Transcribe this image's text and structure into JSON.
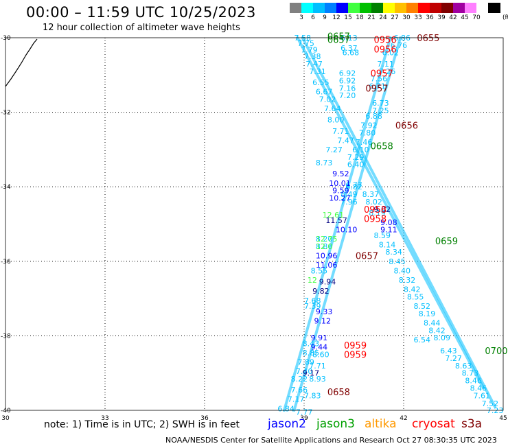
{
  "header": {
    "title": "00:00 – 11:59 UTC 10/25/2023",
    "subtitle": "12 hour collection of altimeter wave heights"
  },
  "color_scale": {
    "unit": "(ft)",
    "bins": [
      {
        "label": "",
        "color": "#808080"
      },
      {
        "label": "3",
        "color": "#00ffff"
      },
      {
        "label": "6",
        "color": "#00bfff"
      },
      {
        "label": "9",
        "color": "#0080ff"
      },
      {
        "label": "12",
        "color": "#0000ff"
      },
      {
        "label": "15",
        "color": "#40ff40"
      },
      {
        "label": "18",
        "color": "#00c000"
      },
      {
        "label": "21",
        "color": "#008000"
      },
      {
        "label": "24",
        "color": "#ffff00"
      },
      {
        "label": "27",
        "color": "#ffc000"
      },
      {
        "label": "30",
        "color": "#ff8000"
      },
      {
        "label": "33",
        "color": "#ff0000"
      },
      {
        "label": "36",
        "color": "#c00000"
      },
      {
        "label": "39",
        "color": "#800000"
      },
      {
        "label": "42",
        "color": "#a000a0"
      },
      {
        "label": "45",
        "color": "#ff80ff"
      },
      {
        "label": "70",
        "color": "#ffffff"
      },
      {
        "label": "",
        "color": "#000000"
      }
    ]
  },
  "map": {
    "lon_ticks": [
      "30",
      "33",
      "36",
      "39",
      "42",
      "45"
    ],
    "lat_ticks": [
      "-30",
      "-32",
      "-34",
      "-36",
      "-38",
      "-40"
    ]
  },
  "tracks": [
    {
      "id": "t1",
      "color": "#00bfff",
      "lon": [
        38.8,
        44.4
      ],
      "lat": [
        -30.0,
        -39.4
      ]
    },
    {
      "id": "t2",
      "color": "#00bfff",
      "lon": [
        38.95,
        44.75
      ],
      "lat": [
        -30.0,
        -39.9
      ]
    },
    {
      "id": "t3",
      "color": "#00bfff",
      "lon": [
        41.6,
        38.4
      ],
      "lat": [
        -30.0,
        -40.0
      ]
    },
    {
      "id": "t4",
      "color": "#00bfff",
      "lon": [
        41.9,
        38.7
      ],
      "lat": [
        -30.0,
        -40.0
      ]
    }
  ],
  "values": [
    {
      "t": "7.58",
      "lon": 38.7,
      "lat": -30.0,
      "c": "#00bfff"
    },
    {
      "t": "7.75",
      "lon": 38.8,
      "lat": -30.15,
      "c": "#00bfff"
    },
    {
      "t": "7.79",
      "lon": 38.9,
      "lat": -30.32,
      "c": "#00bfff"
    },
    {
      "t": "7.38",
      "lon": 39.0,
      "lat": -30.5,
      "c": "#00bfff"
    },
    {
      "t": "7.47",
      "lon": 39.05,
      "lat": -30.7,
      "c": "#00bfff"
    },
    {
      "t": "7.31",
      "lon": 39.15,
      "lat": -30.9,
      "c": "#00bfff"
    },
    {
      "t": "6.55",
      "lon": 39.25,
      "lat": -31.2,
      "c": "#00bfff"
    },
    {
      "t": "6.67",
      "lon": 39.35,
      "lat": -31.45,
      "c": "#00bfff"
    },
    {
      "t": "7.02",
      "lon": 39.45,
      "lat": -31.65,
      "c": "#00bfff"
    },
    {
      "t": "7.64",
      "lon": 39.6,
      "lat": -31.9,
      "c": "#00bfff"
    },
    {
      "t": "8.00",
      "lon": 39.7,
      "lat": -32.2,
      "c": "#00bfff"
    },
    {
      "t": "7.71",
      "lon": 39.85,
      "lat": -32.5,
      "c": "#00bfff"
    },
    {
      "t": "7.47",
      "lon": 40.0,
      "lat": -32.75,
      "c": "#00bfff"
    },
    {
      "t": "7.27",
      "lon": 39.65,
      "lat": -33.0,
      "c": "#00bfff"
    },
    {
      "t": "6.13",
      "lon": 40.1,
      "lat": -30.0,
      "c": "#00bfff"
    },
    {
      "t": "6.37",
      "lon": 40.1,
      "lat": -30.28,
      "c": "#00bfff"
    },
    {
      "t": "6.68",
      "lon": 40.15,
      "lat": -30.4,
      "c": "#00bfff"
    },
    {
      "t": "6.92",
      "lon": 40.05,
      "lat": -30.95,
      "c": "#00bfff"
    },
    {
      "t": "6.92",
      "lon": 40.05,
      "lat": -31.15,
      "c": "#00bfff"
    },
    {
      "t": "7.16",
      "lon": 40.05,
      "lat": -31.35,
      "c": "#00bfff"
    },
    {
      "t": "7.20",
      "lon": 40.05,
      "lat": -31.55,
      "c": "#00bfff"
    },
    {
      "t": "6.73",
      "lon": 41.05,
      "lat": -31.75,
      "c": "#00bfff"
    },
    {
      "t": "7.25",
      "lon": 41.05,
      "lat": -31.95,
      "c": "#00bfff"
    },
    {
      "t": "6.88",
      "lon": 40.85,
      "lat": -32.1,
      "c": "#00bfff"
    },
    {
      "t": "7.92",
      "lon": 40.7,
      "lat": -32.35,
      "c": "#00bfff"
    },
    {
      "t": "7.80",
      "lon": 40.65,
      "lat": -32.55,
      "c": "#00bfff"
    },
    {
      "t": "7.46",
      "lon": 40.55,
      "lat": -32.8,
      "c": "#00bfff"
    },
    {
      "t": "6.10",
      "lon": 40.45,
      "lat": -33.0,
      "c": "#00bfff"
    },
    {
      "t": "7.29",
      "lon": 40.3,
      "lat": -33.2,
      "c": "#00bfff"
    },
    {
      "t": "6.40",
      "lon": 40.3,
      "lat": -33.4,
      "c": "#00bfff"
    },
    {
      "t": "8.73",
      "lon": 39.35,
      "lat": -33.35,
      "c": "#00bfff"
    },
    {
      "t": "6.77",
      "lon": 40.25,
      "lat": -33.95,
      "c": "#00bfff"
    },
    {
      "t": "6.82",
      "lon": 40.25,
      "lat": -34.0,
      "c": "#00bfff"
    },
    {
      "t": "8.49",
      "lon": 40.1,
      "lat": -34.2,
      "c": "#00bfff"
    },
    {
      "t": "7.96",
      "lon": 40.1,
      "lat": -34.4,
      "c": "#00bfff"
    },
    {
      "t": "8.37",
      "lon": 40.75,
      "lat": -34.2,
      "c": "#00bfff"
    },
    {
      "t": "8.02",
      "lon": 40.85,
      "lat": -34.4,
      "c": "#00bfff"
    },
    {
      "t": "8.19",
      "lon": 40.95,
      "lat": -34.7,
      "c": "#00bfff"
    },
    {
      "t": "6.86",
      "lon": 41.7,
      "lat": -30.0,
      "c": "#00bfff"
    },
    {
      "t": "6.76",
      "lon": 41.6,
      "lat": -30.2,
      "c": "#00bfff"
    },
    {
      "t": "6.02",
      "lon": 41.35,
      "lat": -30.4,
      "c": "#00bfff"
    },
    {
      "t": "7.11",
      "lon": 41.2,
      "lat": -30.7,
      "c": "#00bfff"
    },
    {
      "t": "7.26",
      "lon": 41.25,
      "lat": -30.9,
      "c": "#00bfff"
    },
    {
      "t": "7.56",
      "lon": 41.0,
      "lat": -31.1,
      "c": "#00bfff"
    },
    {
      "t": "6.71",
      "lon": 40.95,
      "lat": -31.3,
      "c": "#00bfff"
    },
    {
      "t": "8.59",
      "lon": 41.1,
      "lat": -35.3,
      "c": "#00bfff"
    },
    {
      "t": "8.14",
      "lon": 41.25,
      "lat": -35.55,
      "c": "#00bfff"
    },
    {
      "t": "8.34",
      "lon": 41.45,
      "lat": -35.75,
      "c": "#00bfff"
    },
    {
      "t": "8.45",
      "lon": 41.55,
      "lat": -36.0,
      "c": "#00bfff"
    },
    {
      "t": "8.40",
      "lon": 41.7,
      "lat": -36.25,
      "c": "#00bfff"
    },
    {
      "t": "8.32",
      "lon": 41.85,
      "lat": -36.5,
      "c": "#00bfff"
    },
    {
      "t": "8.42",
      "lon": 42.0,
      "lat": -36.75,
      "c": "#00bfff"
    },
    {
      "t": "8.55",
      "lon": 42.1,
      "lat": -36.95,
      "c": "#00bfff"
    },
    {
      "t": "8.52",
      "lon": 42.3,
      "lat": -37.2,
      "c": "#00bfff"
    },
    {
      "t": "8.19",
      "lon": 42.45,
      "lat": -37.4,
      "c": "#00bfff"
    },
    {
      "t": "8.44",
      "lon": 42.6,
      "lat": -37.65,
      "c": "#00bfff"
    },
    {
      "t": "8.42",
      "lon": 42.75,
      "lat": -37.85,
      "c": "#00bfff"
    },
    {
      "t": "8.09",
      "lon": 42.9,
      "lat": -38.05,
      "c": "#00bfff"
    },
    {
      "t": "6.54",
      "lon": 42.3,
      "lat": -38.1,
      "c": "#00bfff"
    },
    {
      "t": "6.43",
      "lon": 43.1,
      "lat": -38.4,
      "c": "#00bfff"
    },
    {
      "t": "7.27",
      "lon": 43.25,
      "lat": -38.6,
      "c": "#00bfff"
    },
    {
      "t": "8.63",
      "lon": 43.55,
      "lat": -38.8,
      "c": "#00bfff"
    },
    {
      "t": "8.73",
      "lon": 43.75,
      "lat": -39.0,
      "c": "#00bfff"
    },
    {
      "t": "8.46",
      "lon": 43.85,
      "lat": -39.2,
      "c": "#00bfff"
    },
    {
      "t": "8.46",
      "lon": 44.0,
      "lat": -39.4,
      "c": "#00bfff"
    },
    {
      "t": "7.61",
      "lon": 44.1,
      "lat": -39.6,
      "c": "#00bfff"
    },
    {
      "t": "7.52",
      "lon": 44.35,
      "lat": -39.82,
      "c": "#00bfff"
    },
    {
      "t": "7.23",
      "lon": 44.5,
      "lat": -40.0,
      "c": "#00bfff"
    },
    {
      "t": "8.20",
      "lon": 39.35,
      "lat": -35.4,
      "c": "#00bfff"
    },
    {
      "t": "8.86",
      "lon": 39.35,
      "lat": -35.6,
      "c": "#00bfff"
    },
    {
      "t": "8.55",
      "lon": 39.2,
      "lat": -36.25,
      "c": "#00bfff"
    },
    {
      "t": "7.68",
      "lon": 39.0,
      "lat": -37.05,
      "c": "#00bfff"
    },
    {
      "t": "7.39",
      "lon": 39.0,
      "lat": -37.2,
      "c": "#00bfff"
    },
    {
      "t": "8.43",
      "lon": 38.95,
      "lat": -38.2,
      "c": "#00bfff"
    },
    {
      "t": "8.85",
      "lon": 38.95,
      "lat": -38.45,
      "c": "#00bfff"
    },
    {
      "t": "8.60",
      "lon": 39.25,
      "lat": -38.5,
      "c": "#00bfff"
    },
    {
      "t": "7.89",
      "lon": 38.8,
      "lat": -38.7,
      "c": "#00bfff"
    },
    {
      "t": "7.71",
      "lon": 39.15,
      "lat": -38.8,
      "c": "#00bfff"
    },
    {
      "t": "7.40",
      "lon": 38.75,
      "lat": -38.95,
      "c": "#00bfff"
    },
    {
      "t": "8.22",
      "lon": 38.6,
      "lat": -39.15,
      "c": "#00bfff"
    },
    {
      "t": "8.93",
      "lon": 39.15,
      "lat": -39.15,
      "c": "#00bfff"
    },
    {
      "t": "7.66",
      "lon": 38.6,
      "lat": -39.45,
      "c": "#00bfff"
    },
    {
      "t": "7.83",
      "lon": 39.0,
      "lat": -39.6,
      "c": "#00bfff"
    },
    {
      "t": "7.17",
      "lon": 38.5,
      "lat": -39.7,
      "c": "#00bfff"
    },
    {
      "t": "6.84",
      "lon": 38.2,
      "lat": -39.95,
      "c": "#00bfff"
    },
    {
      "t": "7.77",
      "lon": 38.75,
      "lat": -40.05,
      "c": "#00bfff"
    },
    {
      "t": "9.52",
      "lon": 39.85,
      "lat": -33.65,
      "c": "#0000ff"
    },
    {
      "t": "10.01",
      "lon": 39.75,
      "lat": -33.9,
      "c": "#0000ff"
    },
    {
      "t": "9.59",
      "lon": 39.85,
      "lat": -34.1,
      "c": "#0000ff"
    },
    {
      "t": "10.27",
      "lon": 39.75,
      "lat": -34.3,
      "c": "#0000ff"
    },
    {
      "t": "11.57",
      "lon": 39.65,
      "lat": -34.9,
      "c": "#000080"
    },
    {
      "t": "10.10",
      "lon": 39.95,
      "lat": -35.15,
      "c": "#0000ff"
    },
    {
      "t": "9.02",
      "lon": 41.1,
      "lat": -34.6,
      "c": "#000080"
    },
    {
      "t": "9.08",
      "lon": 41.3,
      "lat": -34.95,
      "c": "#0000ff"
    },
    {
      "t": "9.11",
      "lon": 41.3,
      "lat": -35.15,
      "c": "#0000ff"
    },
    {
      "t": "10.96",
      "lon": 39.35,
      "lat": -35.85,
      "c": "#0000ff"
    },
    {
      "t": "11.06",
      "lon": 39.35,
      "lat": -36.1,
      "c": "#0000ff"
    },
    {
      "t": "9.94",
      "lon": 39.45,
      "lat": -36.55,
      "c": "#000080"
    },
    {
      "t": "9.82",
      "lon": 39.25,
      "lat": -36.8,
      "c": "#000080"
    },
    {
      "t": "9.33",
      "lon": 39.35,
      "lat": -37.35,
      "c": "#0000ff"
    },
    {
      "t": "9.12",
      "lon": 39.3,
      "lat": -37.6,
      "c": "#0000ff"
    },
    {
      "t": "9.91",
      "lon": 39.2,
      "lat": -38.05,
      "c": "#0000ff"
    },
    {
      "t": "9.44",
      "lon": 39.2,
      "lat": -38.3,
      "c": "#0000ff"
    },
    {
      "t": "9.17",
      "lon": 38.95,
      "lat": -39.0,
      "c": "#000080"
    },
    {
      "t": "12.61",
      "lon": 39.55,
      "lat": -34.75,
      "c": "#40ff40"
    },
    {
      "t": "12.75",
      "lon": 39.35,
      "lat": -35.4,
      "c": "#40ff40"
    },
    {
      "t": "12.0",
      "lon": 39.35,
      "lat": -35.6,
      "c": "#40ff40"
    },
    {
      "t": "12",
      "lon": 39.1,
      "lat": -36.5,
      "c": "#40ff40"
    }
  ],
  "passes": [
    {
      "t": "0657",
      "lon": 39.7,
      "lat": -29.95,
      "c": "#008000"
    },
    {
      "t": "0657",
      "lon": 39.7,
      "lat": -30.05,
      "c": "#008000"
    },
    {
      "t": "0956",
      "lon": 41.1,
      "lat": -30.05,
      "c": "#ff0000"
    },
    {
      "t": "0956",
      "lon": 41.1,
      "lat": -30.3,
      "c": "#ff0000"
    },
    {
      "t": "0655",
      "lon": 42.4,
      "lat": -30.0,
      "c": "#800000"
    },
    {
      "t": "0957",
      "lon": 41.0,
      "lat": -30.95,
      "c": "#ff0000"
    },
    {
      "t": "0957",
      "lon": 40.85,
      "lat": -31.35,
      "c": "#800000"
    },
    {
      "t": "0656",
      "lon": 41.75,
      "lat": -32.35,
      "c": "#800000"
    },
    {
      "t": "0658",
      "lon": 41.0,
      "lat": -32.9,
      "c": "#008000"
    },
    {
      "t": "0958",
      "lon": 40.8,
      "lat": -34.6,
      "c": "#ff0000"
    },
    {
      "t": "0958",
      "lon": 40.8,
      "lat": -34.85,
      "c": "#ff0000"
    },
    {
      "t": "0659",
      "lon": 42.95,
      "lat": -35.45,
      "c": "#008000"
    },
    {
      "t": "0657",
      "lon": 40.55,
      "lat": -35.85,
      "c": "#800000"
    },
    {
      "t": "0959",
      "lon": 40.2,
      "lat": -38.25,
      "c": "#ff0000"
    },
    {
      "t": "0959",
      "lon": 40.2,
      "lat": -38.5,
      "c": "#ff0000"
    },
    {
      "t": "0700",
      "lon": 44.45,
      "lat": -38.4,
      "c": "#008000"
    },
    {
      "t": "0658",
      "lon": 39.7,
      "lat": -39.5,
      "c": "#800000"
    }
  ],
  "note": "note: 1) Time is in UTC; 2) SWH is in feet",
  "satellites": [
    {
      "name": "jason2",
      "color": "#0000ff"
    },
    {
      "name": "jason3",
      "color": "#00a000"
    },
    {
      "name": "altika",
      "color": "#ff9900"
    },
    {
      "name": "cryosat",
      "color": "#ff0000"
    },
    {
      "name": "s3a",
      "color": "#800000"
    }
  ],
  "footer": "NOAA/NESDIS Center for Satellite Applications and Research   Oct 27 08:30:35 UTC 2023"
}
